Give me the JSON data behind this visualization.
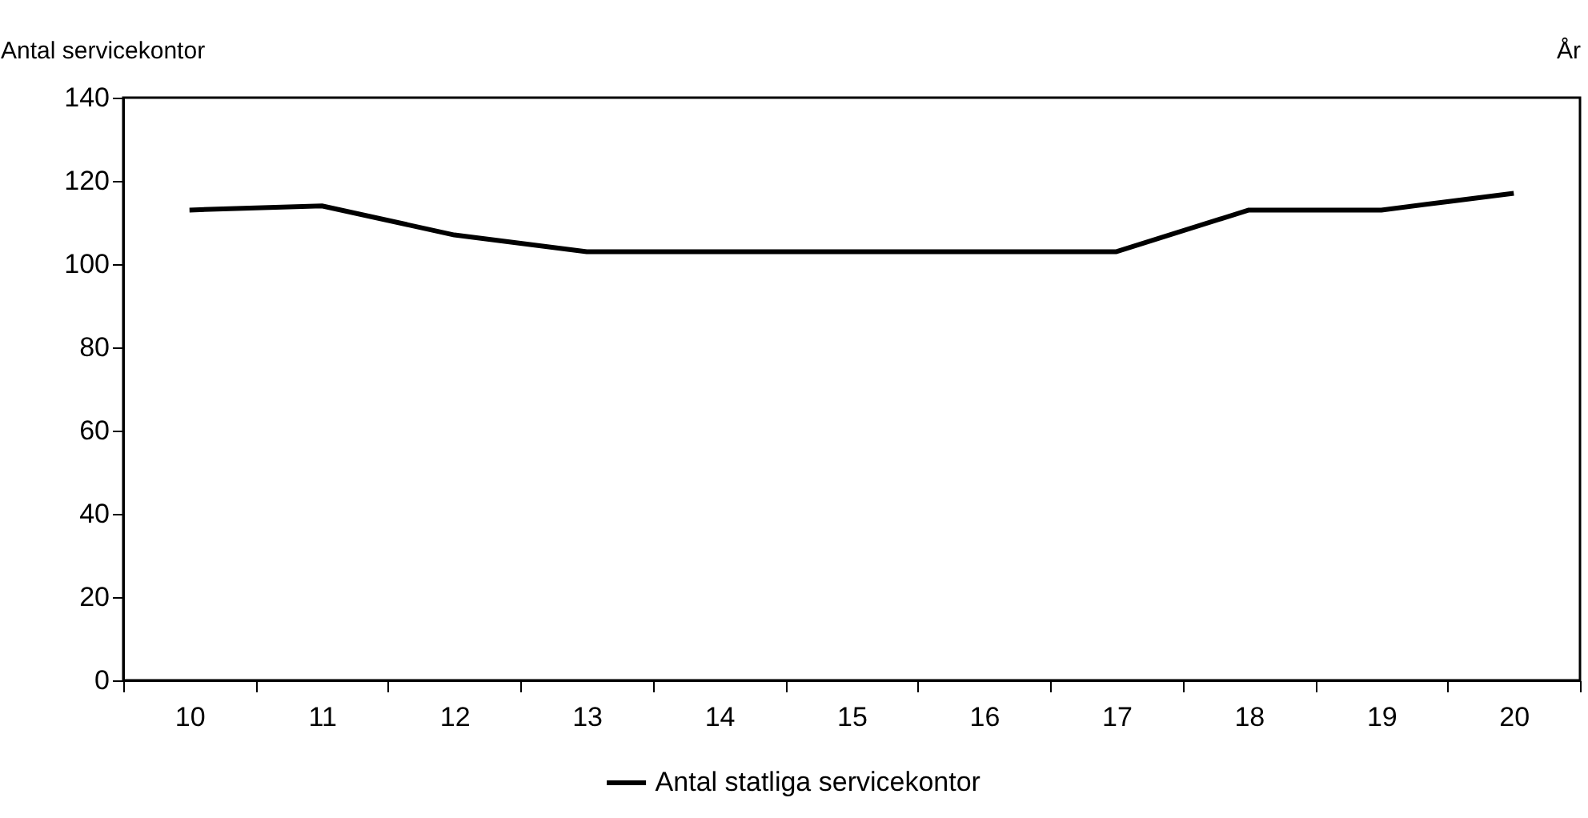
{
  "chart_data": {
    "type": "line",
    "ylabel": "Antal servicekontor",
    "xlabel": "År",
    "categories": [
      "10",
      "11",
      "12",
      "13",
      "14",
      "15",
      "16",
      "17",
      "18",
      "19",
      "20"
    ],
    "series": [
      {
        "name": "Antal statliga servicekontor",
        "color": "#000000",
        "values": [
          113,
          114,
          107,
          103,
          103,
          103,
          103,
          103,
          113,
          113,
          117
        ]
      }
    ],
    "ylim": [
      0,
      140
    ],
    "yticks": [
      0,
      20,
      40,
      60,
      80,
      100,
      120,
      140
    ],
    "grid": false,
    "legend": "bottom",
    "marker": "none",
    "line_style": "solid"
  }
}
